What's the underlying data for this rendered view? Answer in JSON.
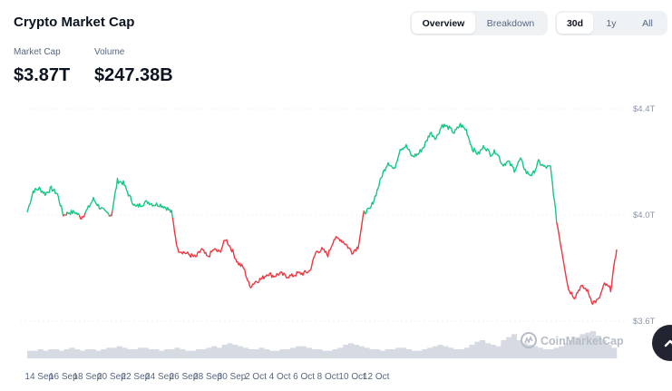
{
  "header": {
    "title": "Crypto Market Cap"
  },
  "view_tabs": [
    {
      "label": "Overview",
      "active": true
    },
    {
      "label": "Breakdown",
      "active": false
    }
  ],
  "range_tabs": [
    {
      "label": "30d",
      "active": true
    },
    {
      "label": "1y",
      "active": false
    },
    {
      "label": "All",
      "active": false
    }
  ],
  "stats": {
    "market_cap": {
      "label": "Market Cap",
      "value": "$3.87T"
    },
    "volume": {
      "label": "Volume",
      "value": "$247.38B"
    }
  },
  "watermark": "CoinMarketCap",
  "colors": {
    "up": "#16c784",
    "down": "#ea3943",
    "volume": "#d6dae2",
    "grid": "#eff2f5"
  },
  "icons": {
    "scroll_top": "chevron-up-icon",
    "watermark_logo": "coinmarketcap-logo-icon"
  },
  "chart_data": {
    "type": "line",
    "y_ticks": [
      "$4.4T",
      "$4.0T",
      "$3.6T"
    ],
    "y_tick_values": [
      4.4,
      4.0,
      3.6
    ],
    "ylim": [
      3.6,
      4.4
    ],
    "baseline": 4.0,
    "x_ticks": [
      "14 Sep",
      "16 Sep",
      "18 Sep",
      "20 Sep",
      "22 Sep",
      "24 Sep",
      "26 Sep",
      "28 Sep",
      "30 Sep",
      "2 Oct",
      "4 Oct",
      "6 Oct",
      "8 Oct",
      "10 Oct",
      "12 Oct"
    ],
    "x_tick_days": [
      1,
      3,
      5,
      7,
      9,
      11,
      13,
      15,
      17,
      19,
      21,
      23,
      25,
      27,
      29
    ],
    "series": [
      {
        "unit": "T USD",
        "points": [
          [
            0,
            4.01
          ],
          [
            0.5,
            4.09
          ],
          [
            1,
            4.1
          ],
          [
            1.5,
            4.08
          ],
          [
            2,
            4.1
          ],
          [
            2.5,
            4.08
          ],
          [
            3,
            4.0
          ],
          [
            3.5,
            4.01
          ],
          [
            4,
            4.01
          ],
          [
            4.5,
            3.99
          ],
          [
            5,
            4.02
          ],
          [
            5.5,
            4.06
          ],
          [
            6,
            4.03
          ],
          [
            6.5,
            4.01
          ],
          [
            7,
            4.0
          ],
          [
            7.5,
            4.13
          ],
          [
            8,
            4.12
          ],
          [
            8.5,
            4.07
          ],
          [
            9,
            4.03
          ],
          [
            9.5,
            4.04
          ],
          [
            10,
            4.05
          ],
          [
            10.5,
            4.04
          ],
          [
            11,
            4.04
          ],
          [
            11.5,
            4.03
          ],
          [
            12,
            4.01
          ],
          [
            12.5,
            3.87
          ],
          [
            13,
            3.86
          ],
          [
            13.5,
            3.85
          ],
          [
            14,
            3.84
          ],
          [
            14.5,
            3.87
          ],
          [
            15,
            3.84
          ],
          [
            15.5,
            3.87
          ],
          [
            16,
            3.86
          ],
          [
            16.5,
            3.91
          ],
          [
            17,
            3.87
          ],
          [
            17.5,
            3.82
          ],
          [
            18,
            3.8
          ],
          [
            18.5,
            3.73
          ],
          [
            19,
            3.75
          ],
          [
            19.5,
            3.76
          ],
          [
            20,
            3.78
          ],
          [
            20.5,
            3.77
          ],
          [
            21,
            3.78
          ],
          [
            21.5,
            3.77
          ],
          [
            22,
            3.77
          ],
          [
            22.5,
            3.78
          ],
          [
            23,
            3.78
          ],
          [
            23.5,
            3.79
          ],
          [
            24,
            3.86
          ],
          [
            24.5,
            3.87
          ],
          [
            25,
            3.85
          ],
          [
            25.5,
            3.91
          ],
          [
            26,
            3.91
          ],
          [
            26.5,
            3.89
          ],
          [
            27,
            3.86
          ],
          [
            27.5,
            3.88
          ],
          [
            28,
            4.01
          ],
          [
            28.5,
            4.02
          ],
          [
            29,
            4.08
          ],
          [
            29.5,
            4.15
          ],
          [
            30,
            4.2
          ],
          [
            30.5,
            4.17
          ],
          [
            31,
            4.25
          ],
          [
            31.5,
            4.26
          ],
          [
            32,
            4.22
          ],
          [
            32.5,
            4.23
          ],
          [
            33,
            4.26
          ],
          [
            33.5,
            4.31
          ],
          [
            34,
            4.29
          ],
          [
            34.5,
            4.34
          ],
          [
            35,
            4.33
          ],
          [
            35.5,
            4.31
          ],
          [
            36,
            4.34
          ],
          [
            36.5,
            4.32
          ],
          [
            37,
            4.25
          ],
          [
            37.5,
            4.23
          ],
          [
            38,
            4.26
          ],
          [
            38.5,
            4.23
          ],
          [
            39,
            4.24
          ],
          [
            39.5,
            4.19
          ],
          [
            40,
            4.2
          ],
          [
            40.5,
            4.17
          ],
          [
            41,
            4.21
          ],
          [
            41.5,
            4.16
          ],
          [
            42,
            4.15
          ],
          [
            42.5,
            4.2
          ],
          [
            43,
            4.18
          ],
          [
            43.5,
            4.18
          ],
          [
            44,
            3.98
          ],
          [
            44.5,
            3.85
          ],
          [
            45,
            3.72
          ],
          [
            45.5,
            3.69
          ],
          [
            46,
            3.73
          ],
          [
            46.5,
            3.72
          ],
          [
            47,
            3.67
          ],
          [
            47.5,
            3.68
          ],
          [
            48,
            3.74
          ],
          [
            48.5,
            3.72
          ],
          [
            49,
            3.87
          ]
        ]
      }
    ],
    "volume": [
      5,
      5,
      6,
      5,
      6,
      6,
      5,
      6,
      7,
      6,
      5,
      6,
      6,
      5,
      6,
      7,
      7,
      8,
      7,
      6,
      6,
      7,
      7,
      6,
      6,
      5,
      6,
      6,
      7,
      6,
      5,
      5,
      6,
      6,
      7,
      8,
      7,
      9,
      10,
      9,
      8,
      7,
      6,
      6,
      7,
      6,
      5,
      5,
      6,
      6,
      7,
      8,
      8,
      7,
      6,
      6,
      5,
      5,
      6,
      7,
      9,
      10,
      9,
      8,
      7,
      6,
      6,
      5,
      6,
      6,
      7,
      7,
      6,
      5,
      5,
      6,
      7,
      8,
      9,
      8,
      7,
      6,
      6,
      7,
      9,
      11,
      12,
      10,
      9,
      8,
      12,
      14,
      16,
      12,
      10,
      9,
      8,
      7,
      6,
      6,
      7,
      8,
      10,
      12,
      14,
      16,
      17,
      18,
      15,
      12,
      9,
      7
    ]
  }
}
